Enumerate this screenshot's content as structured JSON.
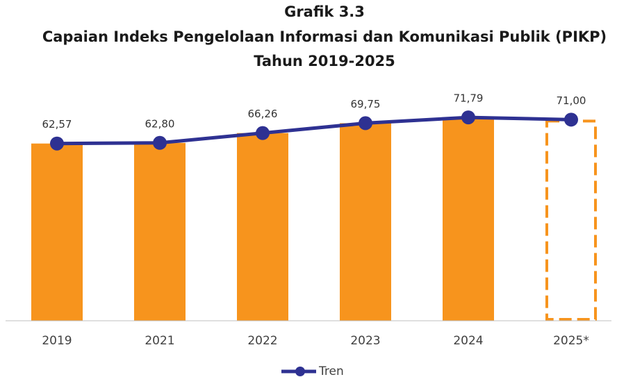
{
  "chart_data": {
    "type": "bar",
    "title": [
      "Grafik 3.3",
      "Capaian Indeks Pengelolaan Informasi dan Komunikasi Publik (PIKP)",
      "Tahun 2019-2025"
    ],
    "categories": [
      "2019",
      "2021",
      "2022",
      "2023",
      "2024",
      "2025*"
    ],
    "series": [
      {
        "type": "bar",
        "color": "#f7941d",
        "values": [
          62.57,
          62.8,
          66.26,
          69.75,
          71.79,
          71.0
        ],
        "dashed": [
          false,
          false,
          false,
          false,
          false,
          true
        ]
      },
      {
        "type": "line",
        "name": "Tren",
        "color": "#2e3192",
        "values": [
          62.57,
          62.8,
          66.26,
          69.75,
          71.79,
          71.0
        ],
        "value_labels": [
          "62,57",
          "62,80",
          "66,26",
          "69,75",
          "71,79",
          "71,00"
        ]
      }
    ],
    "ylim": [
      0,
      75
    ],
    "legend": "bottom"
  }
}
